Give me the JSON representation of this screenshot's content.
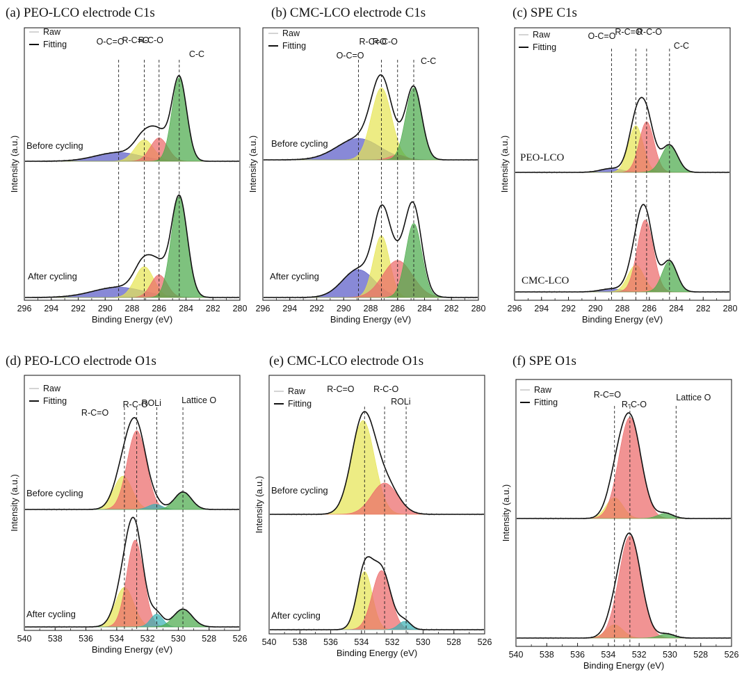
{
  "colors": {
    "blue": "#5a5cc8",
    "yellow": "#e6e455",
    "red": "#ec6a6a",
    "green": "#4caa4c",
    "teal": "#3ab0b4",
    "fit": "#111111",
    "raw": "#aaaaaa"
  },
  "chart_data": [
    {
      "type": "line",
      "title": "(a) PEO-LCO electrode C1s",
      "xlabel": "Binding Energy (eV)",
      "ylabel": "Intensity (a.u.)",
      "xlim": [
        296,
        280
      ],
      "xticks": [
        "296",
        "294",
        "292",
        "290",
        "288",
        "286",
        "284",
        "282",
        "280"
      ],
      "legend": [
        "Raw",
        "Fitting"
      ],
      "markers": [
        {
          "label": "O-C=O",
          "x": 289.0
        },
        {
          "label": "R-C=O",
          "x": 287.1
        },
        {
          "label": "R-C-O",
          "x": 286.0
        },
        {
          "label": "C-C",
          "x": 284.5
        }
      ],
      "series": [
        {
          "name": "Before cycling",
          "baseline": 0.0,
          "peaks": [
            {
              "component": "O-C=O",
              "center": 289.0,
              "width": 1.7,
              "height": 0.09,
              "color": "blue"
            },
            {
              "component": "R-C=O",
              "center": 287.1,
              "width": 0.7,
              "height": 0.22,
              "color": "yellow"
            },
            {
              "component": "R-C-O",
              "center": 286.0,
              "width": 0.65,
              "height": 0.24,
              "color": "red"
            },
            {
              "component": "C-C",
              "center": 284.5,
              "width": 0.55,
              "height": 0.86,
              "color": "green"
            }
          ]
        },
        {
          "name": "After cycling",
          "baseline": 0.0,
          "peaks": [
            {
              "component": "O-C=O",
              "center": 289.0,
              "width": 1.9,
              "height": 0.1,
              "color": "blue"
            },
            {
              "component": "R-C=O",
              "center": 287.1,
              "width": 0.7,
              "height": 0.3,
              "color": "yellow"
            },
            {
              "component": "R-C-O",
              "center": 286.0,
              "width": 0.6,
              "height": 0.22,
              "color": "red"
            },
            {
              "component": "C-C",
              "center": 284.5,
              "width": 0.6,
              "height": 0.98,
              "color": "green"
            }
          ]
        }
      ]
    },
    {
      "type": "line",
      "title": "(b) CMC-LCO electrode C1s",
      "xlabel": "Binding Energy (eV)",
      "ylabel": "Intensity (a.u.)",
      "xlim": [
        296,
        280
      ],
      "xticks": [
        "296",
        "294",
        "292",
        "290",
        "288",
        "286",
        "284",
        "282",
        "280"
      ],
      "legend": [
        "Raw",
        "Fitting"
      ],
      "markers": [
        {
          "label": "O-C=O",
          "x": 288.9
        },
        {
          "label": "R-C=O",
          "x": 287.2
        },
        {
          "label": "R-C-O",
          "x": 286.0
        },
        {
          "label": "C-C",
          "x": 284.8
        }
      ],
      "series": [
        {
          "name": "Before cycling",
          "baseline": 0.0,
          "peaks": [
            {
              "component": "O-C=O",
              "center": 288.9,
              "width": 1.6,
              "height": 0.22,
              "color": "blue"
            },
            {
              "component": "R-C=O",
              "center": 287.2,
              "width": 0.75,
              "height": 0.74,
              "color": "yellow"
            },
            {
              "component": "R-C-O",
              "center": 286.0,
              "width": 0.6,
              "height": 0.05,
              "color": "red"
            },
            {
              "component": "C-C",
              "center": 284.8,
              "width": 0.6,
              "height": 0.74,
              "color": "green"
            }
          ]
        },
        {
          "name": "After cycling",
          "baseline": 0.0,
          "peaks": [
            {
              "component": "O-C=O",
              "center": 288.9,
              "width": 1.2,
              "height": 0.27,
              "color": "blue"
            },
            {
              "component": "R-C=O",
              "center": 287.2,
              "width": 0.6,
              "height": 0.6,
              "color": "yellow"
            },
            {
              "component": "R-C-O",
              "center": 286.0,
              "width": 1.1,
              "height": 0.36,
              "color": "red"
            },
            {
              "component": "C-C",
              "center": 284.8,
              "width": 0.6,
              "height": 0.72,
              "color": "green"
            }
          ]
        }
      ]
    },
    {
      "type": "line",
      "title": "(c) SPE C1s",
      "xlabel": "Binding Energy (eV)",
      "ylabel": "Intensity (a.u.)",
      "xlim": [
        296,
        280
      ],
      "xticks": [
        "296",
        "294",
        "292",
        "290",
        "288",
        "286",
        "284",
        "282",
        "280"
      ],
      "legend": [
        "Raw",
        "Fitting"
      ],
      "markers": [
        {
          "label": "O-C=O",
          "x": 288.8
        },
        {
          "label": "R-C=O",
          "x": 287.0
        },
        {
          "label": "R-C-O",
          "x": 286.2
        },
        {
          "label": "C-C",
          "x": 284.5
        }
      ],
      "series": [
        {
          "name": "PEO-LCO",
          "baseline": 0.0,
          "peaks": [
            {
              "component": "O-C=O",
              "center": 288.8,
              "width": 0.8,
              "height": 0.04,
              "color": "blue"
            },
            {
              "component": "R-C=O",
              "center": 287.0,
              "width": 0.55,
              "height": 0.48,
              "color": "yellow"
            },
            {
              "component": "R-C-O",
              "center": 286.2,
              "width": 0.55,
              "height": 0.52,
              "color": "red"
            },
            {
              "component": "C-C",
              "center": 284.5,
              "width": 0.6,
              "height": 0.28,
              "color": "green"
            }
          ]
        },
        {
          "name": "CMC-LCO",
          "baseline": 0.0,
          "peaks": [
            {
              "component": "O-C=O",
              "center": 288.8,
              "width": 0.8,
              "height": 0.03,
              "color": "blue"
            },
            {
              "component": "R-C=O",
              "center": 287.0,
              "width": 0.6,
              "height": 0.26,
              "color": "yellow"
            },
            {
              "component": "R-C-O",
              "center": 286.3,
              "width": 0.6,
              "height": 0.7,
              "color": "red"
            },
            {
              "component": "C-C",
              "center": 284.5,
              "width": 0.55,
              "height": 0.3,
              "color": "green"
            }
          ]
        }
      ]
    },
    {
      "type": "line",
      "title": "(d) PEO-LCO electrode O1s",
      "xlabel": "Binding Energy (eV)",
      "ylabel": "Intensity (a.u.)",
      "xlim": [
        540,
        526
      ],
      "xticks": [
        "540",
        "538",
        "536",
        "534",
        "532",
        "530",
        "528",
        "526"
      ],
      "legend": [
        "Raw",
        "Fitting"
      ],
      "markers": [
        {
          "label": "R-C=O",
          "x": 533.5
        },
        {
          "label": "R-C-O",
          "x": 532.7
        },
        {
          "label": "ROLi",
          "x": 531.4
        },
        {
          "label": "Lattice O",
          "x": 529.7
        }
      ],
      "series": [
        {
          "name": "Before cycling",
          "baseline": 0.0,
          "peaks": [
            {
              "component": "R-C=O",
              "center": 533.6,
              "width": 0.6,
              "height": 0.38,
              "color": "yellow"
            },
            {
              "component": "R-C-O",
              "center": 532.7,
              "width": 0.62,
              "height": 0.9,
              "color": "red"
            },
            {
              "component": "ROLi",
              "center": 531.5,
              "width": 0.45,
              "height": 0.06,
              "color": "teal"
            },
            {
              "component": "Lattice O",
              "center": 529.7,
              "width": 0.55,
              "height": 0.2,
              "color": "green"
            }
          ]
        },
        {
          "name": "After cycling",
          "baseline": 0.0,
          "peaks": [
            {
              "component": "R-C=O",
              "center": 533.5,
              "width": 0.6,
              "height": 0.4,
              "color": "yellow"
            },
            {
              "component": "R-C-O",
              "center": 532.8,
              "width": 0.55,
              "height": 0.88,
              "color": "red"
            },
            {
              "component": "ROLi",
              "center": 531.4,
              "width": 0.4,
              "height": 0.13,
              "color": "teal"
            },
            {
              "component": "Lattice O",
              "center": 529.7,
              "width": 0.6,
              "height": 0.18,
              "color": "green"
            }
          ]
        }
      ]
    },
    {
      "type": "line",
      "title": "(e) CMC-LCO electrode O1s",
      "xlabel": "Binding Energy (eV)",
      "ylabel": "Intensity (a.u.)",
      "xlim": [
        540,
        526
      ],
      "xticks": [
        "540",
        "538",
        "536",
        "534",
        "532",
        "530",
        "528",
        "526"
      ],
      "legend": [
        "Raw",
        "Fitting"
      ],
      "markers": [
        {
          "label": "R-C=O",
          "x": 533.8
        },
        {
          "label": "R-C-O",
          "x": 532.5
        },
        {
          "label": "ROLi",
          "x": 531.1
        }
      ],
      "series": [
        {
          "name": "Before cycling",
          "baseline": 0.0,
          "peaks": [
            {
              "component": "R-C=O",
              "center": 533.9,
              "width": 0.75,
              "height": 0.9,
              "color": "yellow"
            },
            {
              "component": "R-C-O",
              "center": 532.5,
              "width": 0.85,
              "height": 0.3,
              "color": "red"
            }
          ]
        },
        {
          "name": "After cycling",
          "baseline": 0.0,
          "peaks": [
            {
              "component": "R-C=O",
              "center": 533.8,
              "width": 0.5,
              "height": 0.55,
              "color": "yellow"
            },
            {
              "component": "R-C-O",
              "center": 532.7,
              "width": 0.6,
              "height": 0.56,
              "color": "red"
            },
            {
              "component": "ROLi",
              "center": 531.2,
              "width": 0.4,
              "height": 0.08,
              "color": "teal"
            }
          ]
        }
      ]
    },
    {
      "type": "line",
      "title": "(f) SPE O1s",
      "xlabel": "Binding Energy (eV)",
      "ylabel": "Intensity (a.u.)",
      "xlim": [
        540,
        526
      ],
      "xticks": [
        "540",
        "538",
        "536",
        "534",
        "532",
        "530",
        "528",
        "526"
      ],
      "legend": [
        "Raw",
        "Fitting"
      ],
      "markers": [
        {
          "label": "R-C=O",
          "x": 533.6
        },
        {
          "label": "R-C-O",
          "x": 532.6
        },
        {
          "label": "Lattice O",
          "x": 529.6
        }
      ],
      "series": [
        {
          "name": "",
          "baseline": 0.0,
          "peaks": [
            {
              "component": "R-C=O",
              "center": 533.6,
              "width": 0.55,
              "height": 0.2,
              "color": "yellow"
            },
            {
              "component": "R-C-O",
              "center": 532.6,
              "width": 0.72,
              "height": 0.97,
              "color": "red"
            },
            {
              "component": "Lattice O",
              "center": 530.3,
              "width": 0.5,
              "height": 0.05,
              "color": "green"
            }
          ]
        },
        {
          "name": "",
          "baseline": 0.0,
          "peaks": [
            {
              "component": "R-C=O",
              "center": 533.6,
              "width": 0.55,
              "height": 0.13,
              "color": "yellow"
            },
            {
              "component": "R-C-O",
              "center": 532.6,
              "width": 0.72,
              "height": 1.0,
              "color": "red"
            },
            {
              "component": "Lattice O",
              "center": 530.2,
              "width": 0.5,
              "height": 0.04,
              "color": "green"
            }
          ]
        }
      ]
    }
  ]
}
